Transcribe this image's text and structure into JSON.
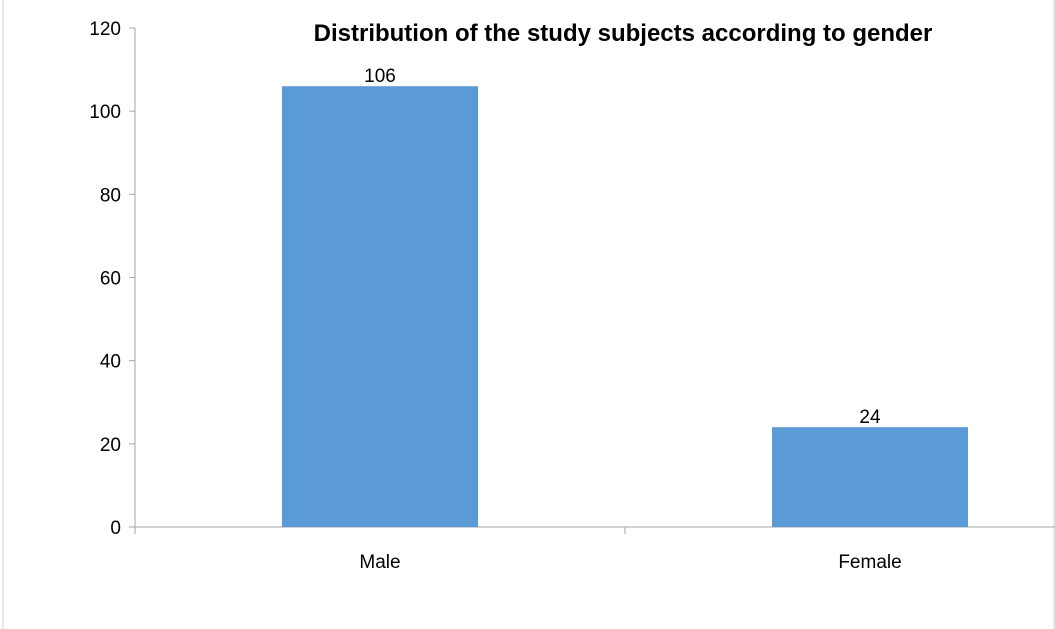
{
  "chart_data": {
    "type": "bar",
    "title": "Distribution of the study subjects according to gender",
    "categories": [
      "Male",
      "Female"
    ],
    "values": [
      106,
      24
    ],
    "data_labels": [
      "106",
      "24"
    ],
    "xlabel": "",
    "ylabel": "",
    "ylim": [
      0,
      120
    ],
    "yticks": [
      0,
      20,
      40,
      60,
      80,
      100,
      120
    ],
    "grid": false,
    "legend": "none",
    "bar_color": "#5B9BD5",
    "axis_color": "#A6A6A6"
  }
}
